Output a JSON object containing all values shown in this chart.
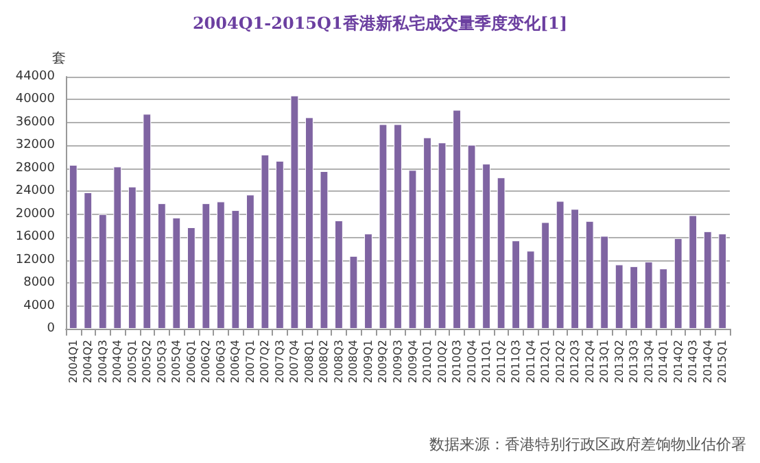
{
  "chart_data": {
    "type": "bar",
    "title": "2004Q1-2015Q1香港新私宅成交量季度变化[1]",
    "ylabel": "套",
    "categories": [
      "2004Q1",
      "2004Q2",
      "2004Q3",
      "2004Q4",
      "2005Q1",
      "2005Q2",
      "2005Q3",
      "2005Q4",
      "2006Q1",
      "2006Q2",
      "2006Q3",
      "2006Q4",
      "2007Q1",
      "2007Q2",
      "2007Q3",
      "2007Q4",
      "2008Q1",
      "2008Q2",
      "2008Q3",
      "2008Q4",
      "2009Q1",
      "2009Q2",
      "2009Q3",
      "2009Q4",
      "2010Q1",
      "2010Q2",
      "2010Q3",
      "2010Q4",
      "2011Q1",
      "2011Q2",
      "2011Q3",
      "2011Q4",
      "2012Q1",
      "2012Q2",
      "2012Q3",
      "2012Q4",
      "2013Q1",
      "2013Q2",
      "2013Q3",
      "2013Q4",
      "2014Q1",
      "2014Q2",
      "2014Q3",
      "2014Q4",
      "2015Q1"
    ],
    "values": [
      28600,
      23800,
      20000,
      28300,
      24800,
      37500,
      21900,
      19400,
      17700,
      21900,
      22200,
      20700,
      23400,
      30400,
      29300,
      40700,
      36900,
      27500,
      18900,
      12700,
      16600,
      35700,
      35700,
      27700,
      33400,
      32500,
      38200,
      32100,
      28800,
      26400,
      15400,
      13600,
      18600,
      22300,
      20900,
      18800,
      16200,
      11200,
      10900,
      11700,
      10500,
      15800,
      19800,
      17000,
      16600
    ],
    "color": "#7f64a2",
    "ylim": [
      0,
      44000
    ],
    "yticks": [
      0,
      4000,
      8000,
      12000,
      16000,
      20000,
      24000,
      28000,
      32000,
      36000,
      40000,
      44000
    ],
    "grid": "y",
    "annotations": [
      "数据来源：香港特别行政区政府差饷物业估价署"
    ]
  }
}
